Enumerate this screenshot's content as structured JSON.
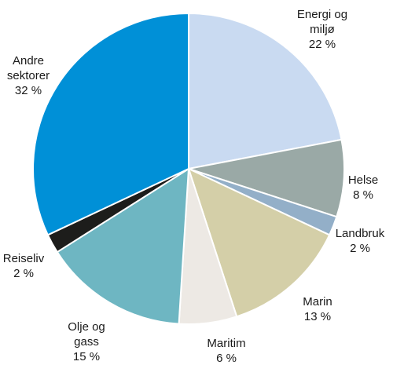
{
  "chart_data": {
    "type": "pie",
    "title": "",
    "start_angle_deg": 0,
    "direction": "clockwise",
    "slices": [
      {
        "name": "Energi og miljø",
        "label_lines": [
          "Energi og",
          "miljø",
          "22 %"
        ],
        "value": 22,
        "color": "#c9daf1"
      },
      {
        "name": "Helse",
        "label_lines": [
          "Helse",
          "8 %"
        ],
        "value": 8,
        "color": "#9aa9a6"
      },
      {
        "name": "Landbruk",
        "label_lines": [
          "Landbruk",
          "2 %"
        ],
        "value": 2,
        "color": "#93afc8"
      },
      {
        "name": "Marin",
        "label_lines": [
          "Marin",
          "13 %"
        ],
        "value": 13,
        "color": "#d4cfa8"
      },
      {
        "name": "Maritim",
        "label_lines": [
          "Maritim",
          "6 %"
        ],
        "value": 6,
        "color": "#ede9e4"
      },
      {
        "name": "Olje og gass",
        "label_lines": [
          "Olje og",
          "gass",
          "15 %"
        ],
        "value": 15,
        "color": "#6eb6c2"
      },
      {
        "name": "Reiseliv",
        "label_lines": [
          "Reiseliv",
          "2 %"
        ],
        "value": 2,
        "color": "#1d1d1b"
      },
      {
        "name": "Andre sektorer",
        "label_lines": [
          "Andre",
          "sektorer",
          "32 %"
        ],
        "value": 32,
        "color": "#0090d7"
      }
    ]
  }
}
